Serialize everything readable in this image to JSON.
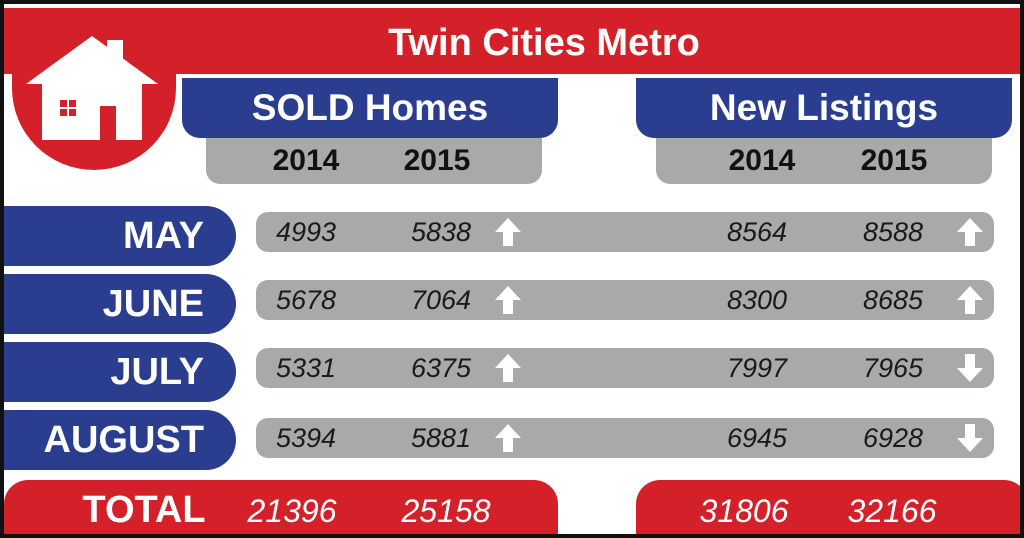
{
  "header": {
    "title": "Twin Cities Metro",
    "logo_icon": "house-icon"
  },
  "groups": {
    "sold": {
      "label": "SOLD Homes",
      "years": [
        "2014",
        "2015"
      ]
    },
    "listings": {
      "label": "New Listings",
      "years": [
        "2014",
        "2015"
      ]
    }
  },
  "rows": [
    {
      "month": "MAY",
      "sold_2014": "4993",
      "sold_2015": "5838",
      "sold_trend": "up",
      "list_2014": "8564",
      "list_2015": "8588",
      "list_trend": "up"
    },
    {
      "month": "JUNE",
      "sold_2014": "5678",
      "sold_2015": "7064",
      "sold_trend": "up",
      "list_2014": "8300",
      "list_2015": "8685",
      "list_trend": "up"
    },
    {
      "month": "JULY",
      "sold_2014": "5331",
      "sold_2015": "6375",
      "sold_trend": "up",
      "list_2014": "7997",
      "list_2015": "7965",
      "list_trend": "down"
    },
    {
      "month": "AUGUST",
      "sold_2014": "5394",
      "sold_2015": "5881",
      "sold_trend": "up",
      "list_2014": "6945",
      "list_2015": "6928",
      "list_trend": "down"
    }
  ],
  "total": {
    "label": "TOTAL",
    "sold_2014": "21396",
    "sold_2015": "25158",
    "list_2014": "31806",
    "list_2015": "32166"
  },
  "colors": {
    "red": "#d42129",
    "blue": "#2a3d8f",
    "gray": "#a7a9ab",
    "arrow": "#ffffff"
  }
}
